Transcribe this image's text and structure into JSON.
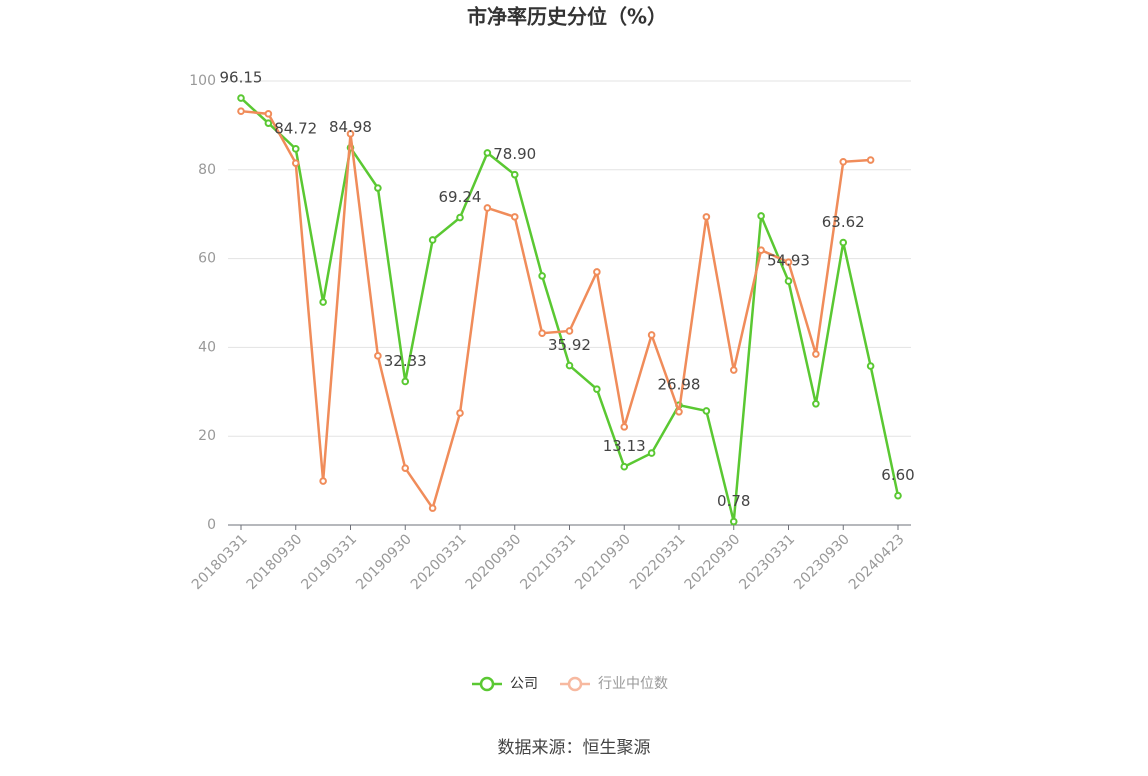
{
  "chart_data": {
    "type": "line",
    "title": "市净率历史分位（%）",
    "categories": [
      "20180331",
      null,
      "20180930",
      null,
      "20190331",
      null,
      "20190930",
      null,
      "20200331",
      null,
      "20200930",
      null,
      "20210331",
      null,
      "20210930",
      null,
      "20220331",
      null,
      "20220930",
      null,
      "20230331",
      null,
      "20230930",
      null,
      "20240423"
    ],
    "series": [
      {
        "name": "公司",
        "color": "#5ac832",
        "values": [
          96.15,
          90.5,
          84.72,
          50.2,
          84.98,
          75.9,
          32.33,
          64.2,
          69.24,
          83.8,
          78.9,
          56.1,
          35.92,
          30.6,
          13.13,
          16.2,
          26.98,
          25.7,
          0.78,
          69.6,
          54.93,
          27.3,
          63.62,
          35.8,
          6.6
        ],
        "value_labels": [
          "96.15",
          null,
          "84.72",
          null,
          "84.98",
          null,
          "32.33",
          null,
          "69.24",
          null,
          "78.90",
          null,
          "35.92",
          null,
          "13.13",
          null,
          "26.98",
          null,
          "0.78",
          null,
          "54.93",
          null,
          "63.62",
          null,
          "6.60"
        ]
      },
      {
        "name": "行业中位数",
        "color": "#f08c5a",
        "values": [
          93.2,
          92.6,
          81.5,
          9.9,
          88.1,
          38.1,
          12.8,
          3.8,
          25.2,
          71.4,
          69.4,
          43.2,
          43.7,
          57.0,
          22.1,
          42.8,
          25.5,
          69.4,
          34.9,
          61.9,
          59.2,
          38.5,
          81.8,
          82.2,
          null
        ]
      }
    ],
    "ylim": [
      0,
      100
    ],
    "yticks": [
      0,
      20,
      40,
      60,
      80,
      100
    ],
    "grid": true,
    "legend": "bottom",
    "source": "数据来源：恒生聚源"
  }
}
